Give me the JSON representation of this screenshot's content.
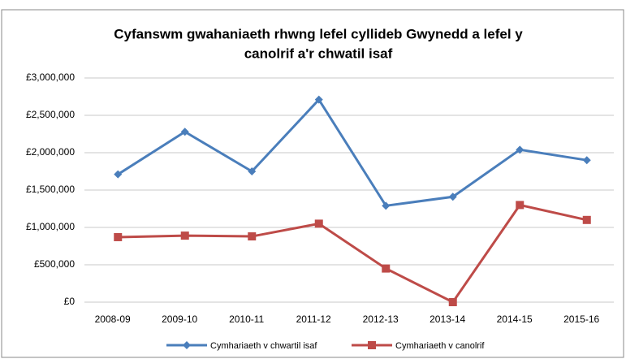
{
  "chart_data": {
    "type": "line",
    "title": [
      "Cyfanswm gwahaniaeth rhwng lefel cyllideb Gwynedd a  lefel y",
      "canolrif a'r chwatil isaf"
    ],
    "categories": [
      "2008-09",
      "2009-10",
      "2010-11",
      "2011-12",
      "2012-13",
      "2013-14",
      "2014-15",
      "2015-16"
    ],
    "series": [
      {
        "name": "Cymhariaeth v chwartil isaf",
        "color": "#4a7ebb",
        "marker": "diamond",
        "values": [
          1710000,
          2280000,
          1750000,
          2710000,
          1290000,
          1410000,
          2040000,
          1900000
        ]
      },
      {
        "name": "Cymhariaeth v canolrif",
        "color": "#be4b48",
        "marker": "square",
        "values": [
          870000,
          890000,
          880000,
          1050000,
          450000,
          0,
          1300000,
          1100000
        ]
      }
    ],
    "ylim": [
      0,
      3000000
    ],
    "yticks": [
      {
        "value": 0,
        "label": "£0"
      },
      {
        "value": 500000,
        "label": "£500,000"
      },
      {
        "value": 1000000,
        "label": "£1,000,000"
      },
      {
        "value": 1500000,
        "label": "£1,500,000"
      },
      {
        "value": 2000000,
        "label": "£2,000,000"
      },
      {
        "value": 2500000,
        "label": "£2,500,000"
      },
      {
        "value": 3000000,
        "label": "£3,000,000"
      }
    ],
    "grid": true,
    "legend": "bottom"
  }
}
